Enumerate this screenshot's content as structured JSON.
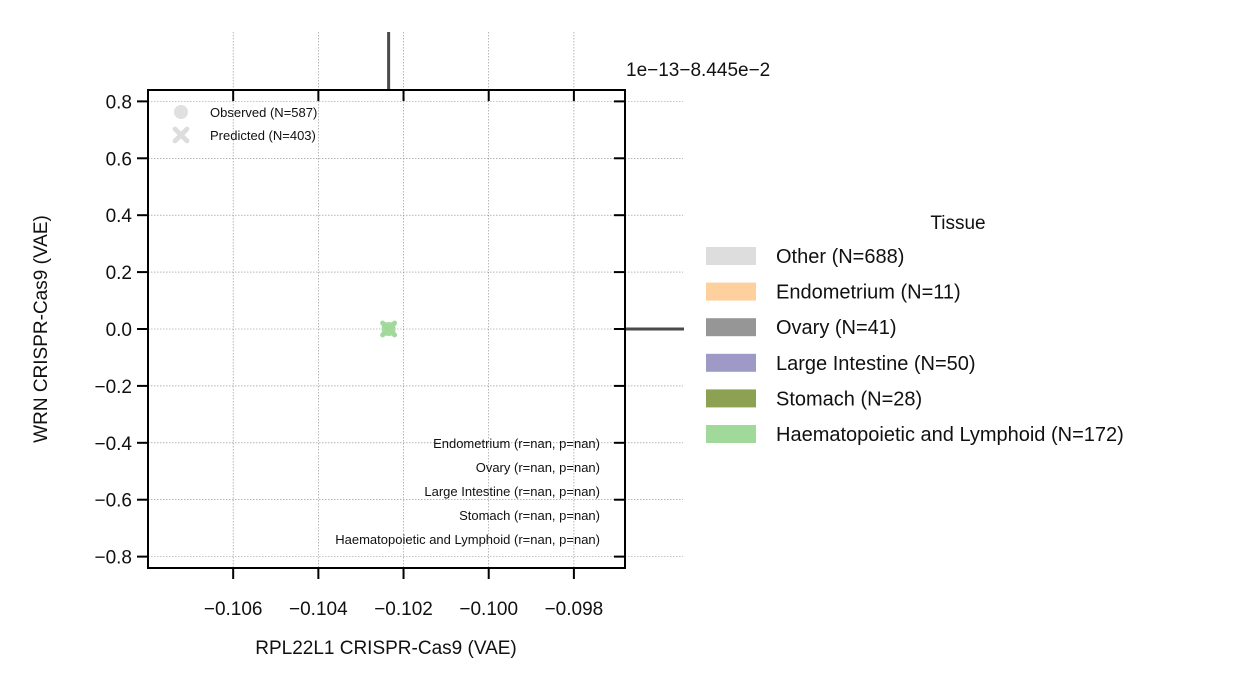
{
  "chart_data": {
    "type": "scatter",
    "xlabel": "RPL22L1 CRISPR-Cas9 (VAE)",
    "ylabel": "WRN CRISPR-Cas9 (VAE)",
    "offset_text": "1e−13−8.445e−2",
    "xlim": [
      -0.108,
      -0.0968
    ],
    "ylim": [
      -0.84,
      0.84
    ],
    "x_ticks": [
      -0.106,
      -0.104,
      -0.102,
      -0.1,
      -0.098
    ],
    "x_tick_labels": [
      "−0.106",
      "−0.104",
      "−0.102",
      "−0.100",
      "−0.098"
    ],
    "y_ticks": [
      0.8,
      0.6,
      0.4,
      0.2,
      0.0,
      -0.2,
      -0.4,
      -0.6,
      -0.8
    ],
    "y_tick_labels": [
      "0.8",
      "0.6",
      "0.4",
      "0.2",
      "0.0",
      "−0.2",
      "−0.4",
      "−0.6",
      "−0.8"
    ],
    "grid": true,
    "marker_legend": {
      "placement": "top-left",
      "entries": [
        {
          "label": "Observed (N=587)",
          "marker": "circle"
        },
        {
          "label": "Predicted (N=403)",
          "marker": "x"
        }
      ]
    },
    "tissue_legend": {
      "title": "Tissue",
      "placement": "outside-right",
      "entries": [
        {
          "label": "Other (N=688)",
          "color": "#dddddd"
        },
        {
          "label": "Endometrium (N=11)",
          "color": "#fdd09d"
        },
        {
          "label": "Ovary (N=41)",
          "color": "#969696"
        },
        {
          "label": "Large Intestine (N=50)",
          "color": "#9e9ac8"
        },
        {
          "label": "Stomach (N=28)",
          "color": "#8ca252"
        },
        {
          "label": "Haematopoietic and Lymphoid (N=172)",
          "color": "#a1d99b"
        }
      ]
    },
    "correlations": [
      "Endometrium (r=nan, p=nan)",
      "Ovary (r=nan, p=nan)",
      "Large Intestine (r=nan, p=nan)",
      "Stomach (r=nan, p=nan)",
      "Haematopoietic and Lymphoid (r=nan, p=nan)"
    ],
    "points": [
      {
        "x": -0.10235,
        "y": 0.0,
        "marker": "circle",
        "color": "#dddddd"
      },
      {
        "x": -0.10235,
        "y": 0.0,
        "marker": "x",
        "color": "#dddddd"
      },
      {
        "x": -0.10235,
        "y": 0.0,
        "marker": "circle",
        "color": "#a1d99b"
      },
      {
        "x": -0.10235,
        "y": 0.0,
        "marker": "x",
        "color": "#a1d99b"
      }
    ],
    "marginal_lines": {
      "x": -0.10235,
      "y": 0.0,
      "color": "#4a4a4a"
    }
  }
}
